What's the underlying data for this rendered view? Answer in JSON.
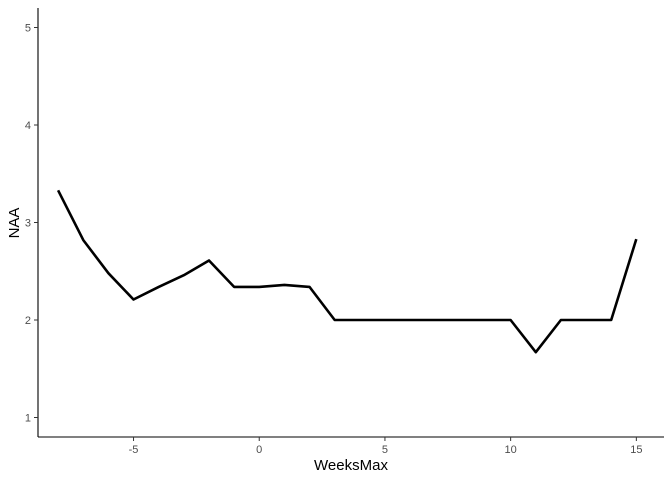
{
  "chart_data": {
    "type": "line",
    "title": "",
    "xlabel": "WeeksMax",
    "ylabel": "NAA",
    "xlim": [
      -8.8,
      16.1
    ],
    "ylim": [
      0.8,
      5.2
    ],
    "xticks": [
      -5,
      0,
      5,
      10,
      15
    ],
    "xtick_labels": [
      "-5",
      "0",
      "5",
      "10",
      "15"
    ],
    "yticks": [
      1,
      2,
      3,
      4,
      5
    ],
    "ytick_labels": [
      "1",
      "2",
      "3",
      "4",
      "5"
    ],
    "grid": false,
    "series": [
      {
        "color": "#000000",
        "x": [
          -8,
          -7,
          -6,
          -5,
          -4,
          -3,
          -2,
          -1,
          0,
          1,
          2,
          3,
          4,
          5,
          6,
          7,
          8,
          9,
          10,
          11,
          12,
          13,
          14,
          15
        ],
        "y": [
          3.33,
          2.82,
          2.48,
          2.21,
          2.34,
          2.46,
          2.61,
          2.34,
          2.34,
          2.36,
          2.34,
          2.0,
          2.0,
          2.0,
          2.0,
          2.0,
          2.0,
          2.0,
          2.0,
          1.67,
          2.0,
          2.0,
          2.0,
          2.83
        ]
      }
    ]
  }
}
